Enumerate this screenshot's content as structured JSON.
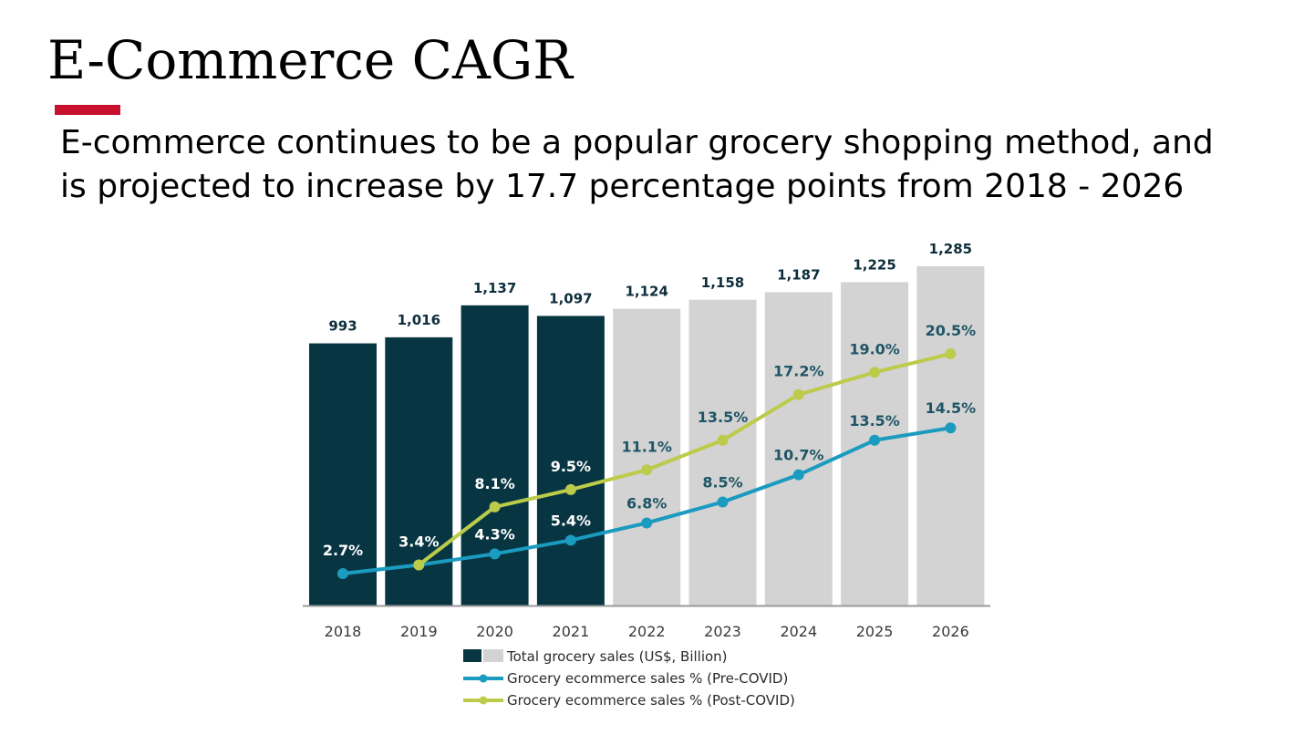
{
  "slide": {
    "title": "E-Commerce CAGR",
    "subtitle_line1": "E-commerce continues to be a popular grocery shopping method, and",
    "subtitle_line2": "is projected to increase by 17.7 percentage points from 2018 - 2026",
    "accent_color": "#c8102e"
  },
  "chart_data": {
    "type": "bar",
    "categories": [
      "2018",
      "2019",
      "2020",
      "2021",
      "2022",
      "2023",
      "2024",
      "2025",
      "2026"
    ],
    "series": [
      {
        "name": "Total grocery sales (US$, Billion)",
        "type": "bar",
        "values": [
          993,
          1016,
          1137,
          1097,
          1124,
          1158,
          1187,
          1225,
          1285
        ],
        "labels": [
          "993",
          "1,016",
          "1,137",
          "1,097",
          "1,124",
          "1,158",
          "1,187",
          "1,225",
          "1,285"
        ],
        "colors": {
          "actual": "#073642",
          "projected": "#d3d3d3"
        },
        "actual_through": "2021"
      },
      {
        "name": "Grocery ecommerce sales % (Pre-COVID)",
        "type": "line",
        "values": [
          2.7,
          3.4,
          4.3,
          5.4,
          6.8,
          8.5,
          10.7,
          13.5,
          14.5
        ],
        "labels": [
          "2.7%",
          "3.4%",
          "4.3%",
          "5.4%",
          "6.8%",
          "8.5%",
          "10.7%",
          "13.5%",
          "14.5%"
        ],
        "color": "#1a9bbf"
      },
      {
        "name": "Grocery ecommerce sales % (Post-COVID)",
        "type": "line",
        "values": [
          2.7,
          3.4,
          8.1,
          9.5,
          11.1,
          13.5,
          17.2,
          19.0,
          20.5
        ],
        "labels": [
          "",
          "",
          "8.1%",
          "9.5%",
          "11.1%",
          "13.5%",
          "17.2%",
          "19.0%",
          "20.5%"
        ],
        "color": "#bccb4a"
      }
    ],
    "legend": [
      "Total grocery sales (US$, Billion)",
      "Grocery ecommerce sales % (Pre-COVID)",
      "Grocery ecommerce sales % (Post-COVID)"
    ],
    "legend_position": "bottom",
    "bar_ylim": [
      0,
      1285
    ],
    "pct_ylim": [
      0,
      20.5
    ],
    "title": "",
    "xlabel": "",
    "ylabel": ""
  }
}
